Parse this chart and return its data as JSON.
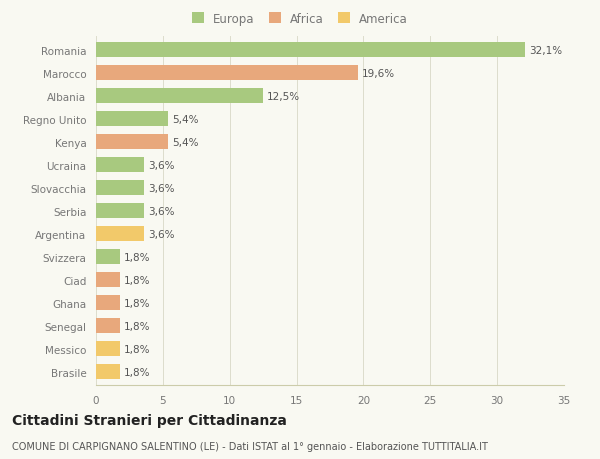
{
  "countries": [
    "Romania",
    "Marocco",
    "Albania",
    "Regno Unito",
    "Kenya",
    "Ucraina",
    "Slovacchia",
    "Serbia",
    "Argentina",
    "Svizzera",
    "Ciad",
    "Ghana",
    "Senegal",
    "Messico",
    "Brasile"
  ],
  "values": [
    32.1,
    19.6,
    12.5,
    5.4,
    5.4,
    3.6,
    3.6,
    3.6,
    3.6,
    1.8,
    1.8,
    1.8,
    1.8,
    1.8,
    1.8
  ],
  "labels": [
    "32,1%",
    "19,6%",
    "12,5%",
    "5,4%",
    "5,4%",
    "3,6%",
    "3,6%",
    "3,6%",
    "3,6%",
    "1,8%",
    "1,8%",
    "1,8%",
    "1,8%",
    "1,8%",
    "1,8%"
  ],
  "continent": [
    "Europa",
    "Africa",
    "Europa",
    "Europa",
    "Africa",
    "Europa",
    "Europa",
    "Europa",
    "America",
    "Europa",
    "Africa",
    "Africa",
    "Africa",
    "America",
    "America"
  ],
  "colors": {
    "Europa": "#a8c97f",
    "Africa": "#e8a87c",
    "America": "#f2c96a"
  },
  "xlim": [
    0,
    35
  ],
  "xticks": [
    0,
    5,
    10,
    15,
    20,
    25,
    30,
    35
  ],
  "title": "Cittadini Stranieri per Cittadinanza",
  "subtitle": "COMUNE DI CARPIGNANO SALENTINO (LE) - Dati ISTAT al 1° gennaio - Elaborazione TUTTITALIA.IT",
  "bg_color": "#f9f9f2",
  "bar_height": 0.62,
  "label_fontsize": 7.5,
  "tick_fontsize": 7.5,
  "title_fontsize": 10,
  "subtitle_fontsize": 7
}
